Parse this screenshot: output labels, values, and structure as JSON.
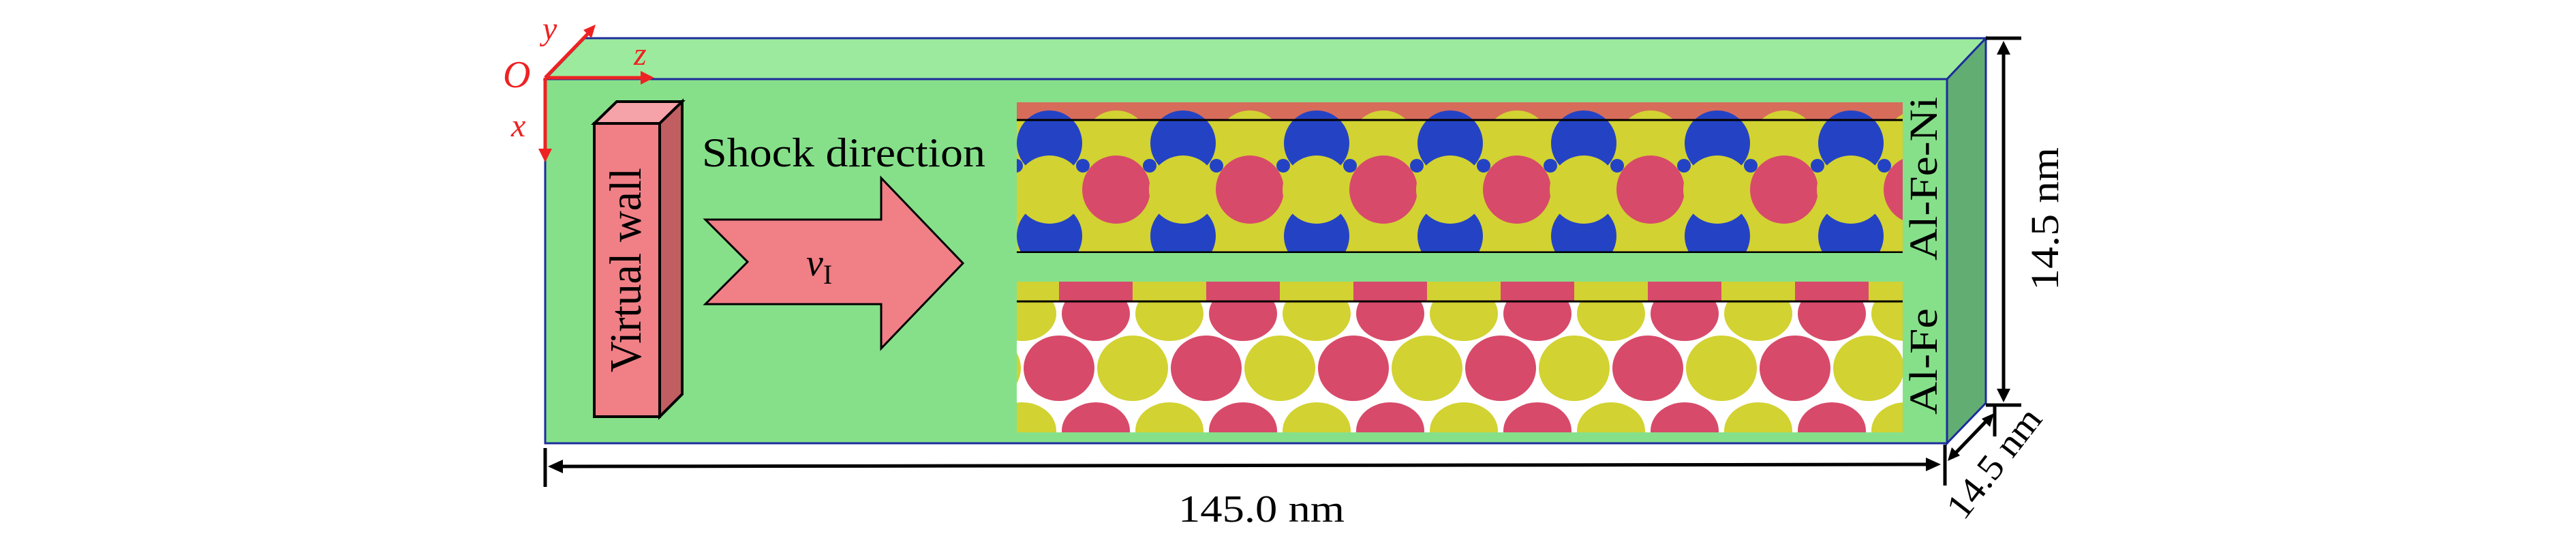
{
  "axes": {
    "origin": "O",
    "x": "x",
    "y": "y",
    "z": "z"
  },
  "wall_label": "Virtual wall",
  "shock_label": "Shock direction",
  "velocity_label": {
    "symbol": "v",
    "subscript": "I"
  },
  "panels": [
    {
      "label": "Al-Fe-Ni",
      "elements": [
        "yellow",
        "red",
        "blue"
      ]
    },
    {
      "label": "Al-Fe",
      "elements": [
        "yellow",
        "red"
      ]
    }
  ],
  "dimensions": {
    "length": "145.0 nm",
    "height": "14.5 nm",
    "depth": "14.5 nm"
  },
  "colors": {
    "box_top": "#9cea9e",
    "box_front": "#86e08a",
    "box_side": "#62ae72",
    "box_edge": "#1c2c9c",
    "wall_front": "#f07f86",
    "wall_side": "#c05e62",
    "wall_top": "#f5a2a8",
    "axis": "#ee2222",
    "atom_yellow": "#d2d232",
    "atom_red": "#d84a6a",
    "atom_blue": "#2443c4"
  }
}
